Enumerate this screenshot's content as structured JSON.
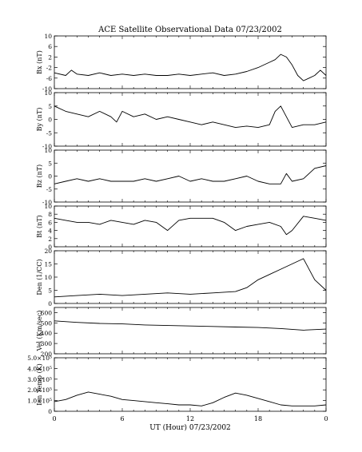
{
  "chart_data": {
    "type": "line",
    "title": "ACE Satellite Observational Data   07/23/2002",
    "xlabel": "UT (Hour)   07/23/2002",
    "x_range": [
      0,
      24
    ],
    "x_tick_labels": [
      "0",
      "6",
      "12",
      "18",
      "0"
    ],
    "panels": [
      {
        "key": "bx",
        "ylabel": "Bx (nT)",
        "ylim": [
          -10,
          10
        ],
        "y_ticks": [
          -10,
          -6,
          -2,
          2,
          6,
          10
        ],
        "y_tick_labels": [
          "-10",
          "-6",
          "-2",
          "2",
          "6",
          "10"
        ],
        "x": [
          0,
          1,
          1.5,
          2,
          3,
          4,
          5,
          6,
          7,
          8,
          9,
          10,
          11,
          12,
          13,
          14,
          15,
          16,
          17,
          18,
          19,
          19.5,
          20,
          20.5,
          21,
          21.5,
          22,
          22.5,
          23,
          23.5,
          24
        ],
        "values": [
          -4,
          -5,
          -3,
          -4.5,
          -5,
          -4,
          -5,
          -4.5,
          -5,
          -4.5,
          -5,
          -5,
          -4.5,
          -5,
          -4.5,
          -4,
          -5,
          -4.5,
          -3.5,
          -2,
          0,
          1,
          3,
          2,
          -1,
          -5,
          -7,
          -6,
          -5,
          -3,
          -5
        ]
      },
      {
        "key": "by",
        "ylabel": "By (nT)",
        "ylim": [
          -10,
          10
        ],
        "y_ticks": [
          -10,
          -5,
          0,
          5,
          10
        ],
        "y_tick_labels": [
          "-10",
          "-5",
          "0",
          "5",
          "10"
        ],
        "x": [
          0,
          1,
          2,
          3,
          4,
          5,
          5.5,
          6,
          7,
          8,
          9,
          10,
          11,
          12,
          13,
          14,
          15,
          16,
          17,
          18,
          19,
          19.5,
          20,
          20.5,
          21,
          22,
          23,
          24
        ],
        "values": [
          5,
          3,
          2,
          1,
          3,
          1,
          -1,
          3,
          1,
          2,
          0,
          1,
          0,
          -1,
          -2,
          -1,
          -2,
          -3,
          -2.5,
          -3,
          -2,
          3,
          5,
          1,
          -3,
          -2,
          -2,
          -1
        ]
      },
      {
        "key": "bz",
        "ylabel": "Bz (nT)",
        "ylim": [
          -10,
          10
        ],
        "y_ticks": [
          -10,
          -5,
          0,
          5,
          10
        ],
        "y_tick_labels": [
          "-10",
          "-5",
          "0",
          "5",
          "10"
        ],
        "x": [
          0,
          1,
          2,
          3,
          4,
          5,
          6,
          7,
          8,
          9,
          10,
          11,
          12,
          13,
          14,
          15,
          16,
          17,
          18,
          19,
          20,
          20.5,
          21,
          22,
          23,
          24
        ],
        "values": [
          -3,
          -2,
          -1,
          -2,
          -1,
          -2,
          -2,
          -2,
          -1,
          -2,
          -1,
          0,
          -2,
          -1,
          -2,
          -2,
          -1,
          0,
          -2,
          -3,
          -3,
          1,
          -2,
          -1,
          3,
          4
        ]
      },
      {
        "key": "bt",
        "ylabel": "Bt (nT)",
        "ylim": [
          0,
          10
        ],
        "y_ticks": [
          0,
          2,
          4,
          6,
          8,
          10
        ],
        "y_tick_labels": [
          "0",
          "2",
          "4",
          "6",
          "8",
          "10"
        ],
        "x": [
          0,
          1,
          2,
          3,
          4,
          5,
          6,
          7,
          8,
          9,
          10,
          11,
          12,
          13,
          14,
          15,
          16,
          17,
          18,
          19,
          20,
          20.5,
          21,
          22,
          23,
          24
        ],
        "values": [
          7,
          6.5,
          6,
          6,
          5.5,
          6.5,
          6,
          5.5,
          6.5,
          6,
          4,
          6.5,
          7,
          7,
          7,
          6,
          4,
          5,
          5.5,
          6,
          5,
          3,
          4,
          7.5,
          7,
          6.5
        ]
      },
      {
        "key": "den",
        "ylabel": "Den (1/CC)",
        "ylim": [
          0,
          20
        ],
        "y_ticks": [
          0,
          5,
          10,
          15,
          20
        ],
        "y_tick_labels": [
          "0",
          "5",
          "10",
          "15",
          "20"
        ],
        "x": [
          0,
          2,
          4,
          6,
          8,
          10,
          12,
          14,
          16,
          17,
          18,
          19,
          20,
          21,
          22,
          23,
          24
        ],
        "values": [
          2.5,
          3,
          3.5,
          3,
          3.5,
          4,
          3.5,
          4,
          4.5,
          6,
          9,
          11,
          13,
          15,
          17,
          9,
          5
        ]
      },
      {
        "key": "vel",
        "ylabel": "Vel (Km/sec)",
        "ylim": [
          200,
          650
        ],
        "y_ticks": [
          200,
          300,
          400,
          500,
          600
        ],
        "y_tick_labels": [
          "200",
          "300",
          "400",
          "500",
          "600"
        ],
        "x": [
          0,
          2,
          4,
          6,
          8,
          10,
          12,
          14,
          16,
          18,
          20,
          22,
          24
        ],
        "values": [
          520,
          505,
          495,
          490,
          480,
          475,
          470,
          465,
          460,
          455,
          445,
          430,
          440
        ]
      },
      {
        "key": "temp",
        "ylabel": "Ion Temp (K)",
        "ylim": [
          0,
          500000
        ],
        "y_ticks": [
          0,
          100000,
          200000,
          300000,
          400000,
          500000
        ],
        "y_tick_labels": [
          "0",
          "1.0×10⁵",
          "2.0×10⁵",
          "3.0×10⁵",
          "4.0×10⁵",
          "5.0×10⁵"
        ],
        "x": [
          0,
          1,
          2,
          3,
          4,
          5,
          6,
          7,
          8,
          9,
          10,
          11,
          12,
          13,
          14,
          15,
          16,
          17,
          18,
          19,
          20,
          21,
          22,
          23,
          24
        ],
        "values": [
          90000,
          110000,
          150000,
          180000,
          160000,
          140000,
          110000,
          100000,
          90000,
          80000,
          70000,
          60000,
          60000,
          50000,
          80000,
          130000,
          170000,
          150000,
          120000,
          90000,
          60000,
          50000,
          50000,
          50000,
          60000
        ]
      }
    ],
    "grid": false,
    "legend": "none"
  }
}
